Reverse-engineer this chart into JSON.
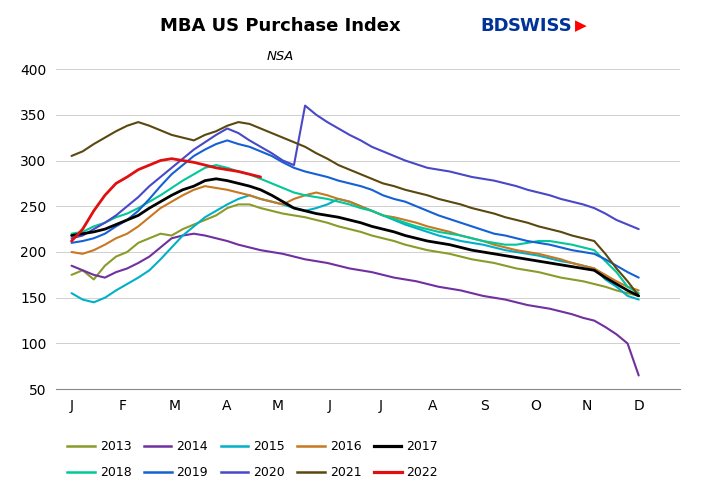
{
  "title": "MBA US Purchase Index",
  "subtitle": "NSA",
  "xlabels": [
    "J",
    "F",
    "M",
    "A",
    "M",
    "J",
    "J",
    "A",
    "S",
    "O",
    "N",
    "D"
  ],
  "ylim": [
    50,
    410
  ],
  "yticks": [
    50,
    100,
    150,
    200,
    250,
    300,
    350,
    400
  ],
  "series": {
    "2013": {
      "color": "#8B9B2A",
      "lw": 1.5,
      "data": [
        175,
        180,
        170,
        185,
        195,
        200,
        210,
        215,
        220,
        218,
        225,
        230,
        235,
        240,
        248,
        252,
        252,
        248,
        245,
        242,
        240,
        238,
        235,
        232,
        228,
        225,
        222,
        218,
        215,
        212,
        208,
        205,
        202,
        200,
        198,
        195,
        192,
        190,
        188,
        185,
        182,
        180,
        178,
        175,
        172,
        170,
        168,
        165,
        162,
        158,
        155,
        152
      ]
    },
    "2014": {
      "color": "#7030A0",
      "lw": 1.5,
      "data": [
        185,
        180,
        175,
        172,
        178,
        182,
        188,
        195,
        205,
        215,
        218,
        220,
        218,
        215,
        212,
        208,
        205,
        202,
        200,
        198,
        195,
        192,
        190,
        188,
        185,
        182,
        180,
        178,
        175,
        172,
        170,
        168,
        165,
        162,
        160,
        158,
        155,
        152,
        150,
        148,
        145,
        142,
        140,
        138,
        135,
        132,
        128,
        125,
        118,
        110,
        100,
        65
      ]
    },
    "2015": {
      "color": "#00B0C8",
      "lw": 1.5,
      "data": [
        155,
        148,
        145,
        150,
        158,
        165,
        172,
        180,
        192,
        205,
        218,
        228,
        238,
        245,
        252,
        258,
        262,
        258,
        255,
        252,
        248,
        245,
        248,
        252,
        258,
        255,
        250,
        245,
        240,
        235,
        230,
        226,
        222,
        218,
        215,
        212,
        210,
        208,
        205,
        202,
        200,
        198,
        196,
        193,
        190,
        188,
        185,
        182,
        170,
        162,
        152,
        148
      ]
    },
    "2016": {
      "color": "#C87820",
      "lw": 1.5,
      "data": [
        200,
        198,
        202,
        208,
        215,
        220,
        228,
        238,
        248,
        255,
        262,
        268,
        272,
        270,
        268,
        265,
        262,
        258,
        255,
        252,
        258,
        262,
        265,
        262,
        258,
        255,
        250,
        245,
        240,
        238,
        235,
        232,
        228,
        225,
        222,
        218,
        215,
        212,
        208,
        205,
        202,
        200,
        198,
        195,
        192,
        188,
        185,
        182,
        175,
        168,
        162,
        158
      ]
    },
    "2017": {
      "color": "#000000",
      "lw": 2.0,
      "data": [
        218,
        220,
        222,
        225,
        230,
        235,
        240,
        248,
        255,
        262,
        268,
        272,
        278,
        280,
        278,
        275,
        272,
        268,
        262,
        255,
        248,
        245,
        242,
        240,
        238,
        235,
        232,
        228,
        225,
        222,
        218,
        215,
        212,
        210,
        208,
        205,
        202,
        200,
        198,
        196,
        194,
        192,
        190,
        188,
        186,
        184,
        182,
        180,
        172,
        165,
        158,
        152
      ]
    },
    "2018": {
      "color": "#00C896",
      "lw": 1.5,
      "data": [
        220,
        222,
        228,
        232,
        238,
        242,
        248,
        255,
        262,
        270,
        278,
        285,
        292,
        295,
        292,
        288,
        285,
        280,
        275,
        270,
        265,
        262,
        260,
        258,
        255,
        252,
        248,
        245,
        240,
        236,
        232,
        228,
        225,
        222,
        220,
        218,
        215,
        212,
        210,
        208,
        208,
        210,
        212,
        212,
        210,
        208,
        205,
        202,
        190,
        178,
        162,
        155
      ]
    },
    "2019": {
      "color": "#1560D4",
      "lw": 1.5,
      "data": [
        210,
        212,
        215,
        220,
        228,
        235,
        245,
        258,
        272,
        285,
        295,
        305,
        312,
        318,
        322,
        318,
        315,
        310,
        305,
        298,
        292,
        288,
        285,
        282,
        278,
        275,
        272,
        268,
        262,
        258,
        255,
        250,
        245,
        240,
        236,
        232,
        228,
        224,
        220,
        218,
        215,
        212,
        210,
        208,
        205,
        202,
        200,
        198,
        192,
        185,
        178,
        172
      ]
    },
    "2020": {
      "color": "#4848C8",
      "lw": 1.5,
      "data": [
        215,
        218,
        225,
        232,
        240,
        250,
        260,
        272,
        282,
        292,
        302,
        312,
        320,
        328,
        335,
        330,
        322,
        315,
        308,
        300,
        295,
        360,
        350,
        342,
        335,
        328,
        322,
        315,
        310,
        305,
        300,
        296,
        292,
        290,
        288,
        285,
        282,
        280,
        278,
        275,
        272,
        268,
        265,
        262,
        258,
        255,
        252,
        248,
        242,
        235,
        230,
        225
      ]
    },
    "2021": {
      "color": "#5A4810",
      "lw": 1.5,
      "data": [
        305,
        310,
        318,
        325,
        332,
        338,
        342,
        338,
        333,
        328,
        325,
        322,
        328,
        332,
        338,
        342,
        340,
        335,
        330,
        325,
        320,
        315,
        308,
        302,
        295,
        290,
        285,
        280,
        275,
        272,
        268,
        265,
        262,
        258,
        255,
        252,
        248,
        245,
        242,
        238,
        235,
        232,
        228,
        225,
        222,
        218,
        215,
        212,
        198,
        182,
        168,
        152
      ]
    },
    "2022": {
      "color": "#E01010",
      "lw": 2.0,
      "data": [
        212,
        225,
        245,
        262,
        275,
        282,
        290,
        295,
        300,
        302,
        300,
        298,
        295,
        292,
        290,
        288,
        285,
        282,
        null,
        null,
        null,
        null,
        null,
        null,
        null,
        null,
        null,
        null,
        null,
        null,
        null,
        null,
        null,
        null,
        null,
        null,
        null,
        null,
        null,
        null,
        null,
        null,
        null,
        null,
        null,
        null,
        null,
        null,
        null,
        null,
        null,
        null
      ]
    }
  },
  "n_weeks": 52,
  "background_color": "#ffffff",
  "grid_color": "#d0d0d0"
}
